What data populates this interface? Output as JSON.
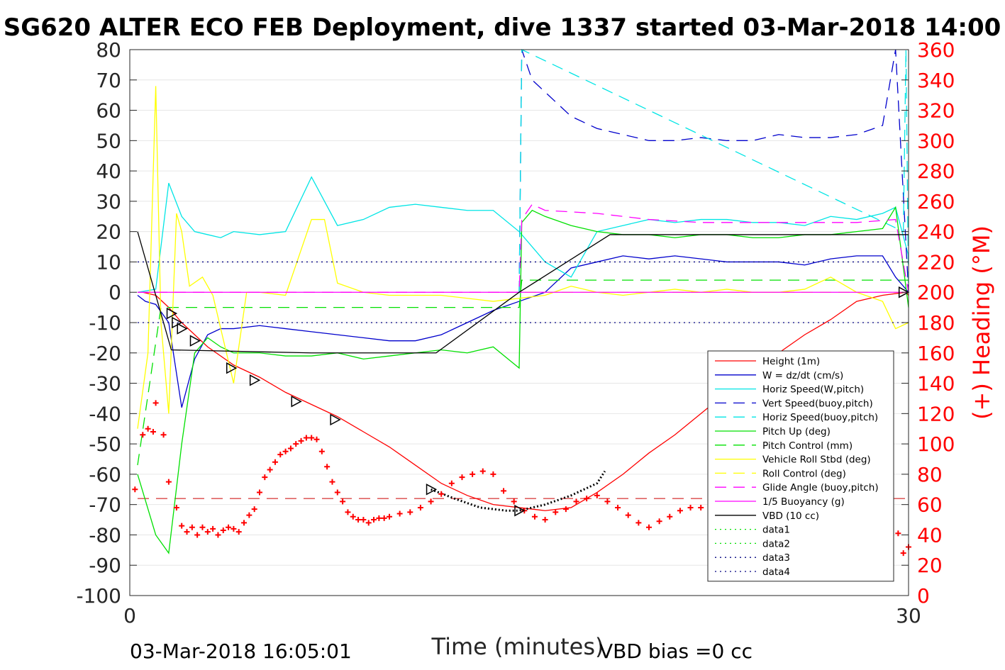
{
  "chart_data": {
    "type": "line",
    "title": "SG620 ALTER ECO FEB Deployment, dive 1337 started 03-Mar-2018 14:00",
    "xlabel": "Time (minutes)",
    "ylabel_right": "(+) Heading (°M)",
    "footer_left": "03-Mar-2018 16:05:01",
    "footer_right": "VBD bias =0 cc",
    "xlim": [
      0,
      30
    ],
    "ylim": [
      -100,
      80
    ],
    "y2lim": [
      0,
      360
    ],
    "x_ticks": [
      0,
      30
    ],
    "y_ticks": [
      -100,
      -90,
      -80,
      -70,
      -60,
      -50,
      -40,
      -30,
      -20,
      -10,
      0,
      10,
      20,
      30,
      40,
      50,
      60,
      70,
      80
    ],
    "y2_ticks": [
      0,
      20,
      40,
      60,
      80,
      100,
      120,
      140,
      160,
      180,
      200,
      220,
      240,
      260,
      280,
      300,
      320,
      340,
      360
    ],
    "grid": true,
    "legend_position": "lower-right",
    "series": [
      {
        "name": "Height (1m)",
        "color": "#ff0000",
        "style": "solid",
        "x": [
          0.5,
          1.0,
          1.5,
          2.0,
          3.0,
          4.0,
          5.0,
          6.0,
          7.0,
          8.0,
          9.0,
          10.0,
          11.0,
          12.0,
          13.0,
          14.0,
          15.0,
          16.0,
          17.0,
          18.0,
          19.0,
          20.0,
          21.0,
          22.0,
          23.0,
          24.0,
          25.0,
          26.0,
          27.0,
          28.0,
          29.0,
          29.9,
          30.0
        ],
        "y": [
          0,
          -1,
          -5,
          -10,
          -18,
          -24,
          -28,
          -33,
          -37,
          -41,
          -46,
          -51,
          -57,
          -63,
          -67,
          -70,
          -71,
          -72,
          -71,
          -66,
          -60,
          -53,
          -47,
          -40,
          -33,
          -27,
          -20,
          -14,
          -9,
          -3,
          -1,
          0,
          -1
        ]
      },
      {
        "name": "W = dz/dt (cm/s)",
        "color": "#0000cc",
        "style": "solid",
        "x": [
          0.3,
          0.6,
          1.0,
          1.5,
          2.0,
          2.5,
          3.0,
          3.5,
          4.0,
          5.0,
          6.0,
          7.0,
          8.0,
          9.0,
          10.0,
          11.0,
          12.0,
          13.0,
          14.0,
          15.0,
          16.0,
          17.0,
          18.0,
          19.0,
          20.0,
          21.0,
          22.0,
          23.0,
          24.0,
          25.0,
          26.0,
          27.0,
          28.0,
          29.0,
          29.5,
          30.0
        ],
        "y": [
          -1,
          -3,
          -4,
          -10,
          -38,
          -22,
          -14,
          -12,
          -12,
          -11,
          -12,
          -13,
          -14,
          -15,
          -16,
          -16,
          -14,
          -10,
          -6,
          -3,
          0,
          8,
          10,
          12,
          11,
          12,
          11,
          10,
          10,
          10,
          9,
          11,
          12,
          12,
          5,
          0
        ]
      },
      {
        "name": "Horiz Speed(W,pitch)",
        "color": "#00e5e5",
        "style": "solid",
        "x": [
          0.3,
          1.0,
          1.5,
          2.0,
          2.5,
          3.0,
          3.5,
          4.0,
          5.0,
          6.0,
          7.0,
          8.0,
          9.0,
          10.0,
          11.0,
          12.0,
          13.0,
          14.0,
          15.0,
          16.0,
          17.0,
          18.0,
          19.0,
          20.0,
          21.0,
          22.0,
          23.0,
          24.0,
          25.0,
          26.0,
          27.0,
          28.0,
          29.0,
          29.5,
          30.0
        ],
        "y": [
          0,
          1,
          36,
          25,
          20,
          19,
          18,
          20,
          19,
          20,
          38,
          22,
          24,
          28,
          29,
          28,
          27,
          27,
          20,
          10,
          5,
          20,
          22,
          24,
          23,
          24,
          24,
          23,
          23,
          22,
          25,
          24,
          26,
          28,
          12
        ]
      },
      {
        "name": "Vert Speed(buoy,pitch)",
        "color": "#0000cc",
        "style": "dashed",
        "x": [
          15.0,
          15.1,
          15.5,
          16.0,
          17.0,
          18.0,
          19.0,
          20.0,
          21.0,
          22.0,
          23.0,
          24.0,
          25.0,
          26.0,
          27.0,
          28.0,
          29.0,
          29.5,
          30.0
        ],
        "y": [
          0,
          80,
          70,
          66,
          58,
          54,
          52,
          50,
          50,
          51,
          50,
          50,
          52,
          51,
          51,
          52,
          55,
          80,
          0
        ]
      },
      {
        "name": "Horiz Speed(buoy,pitch)",
        "color": "#00e5e5",
        "style": "dashed",
        "x": [
          15.0,
          15.1,
          29.8,
          29.9,
          30.0
        ],
        "y": [
          0,
          80,
          20,
          80,
          0
        ]
      },
      {
        "name": "Pitch Up (deg)",
        "color": "#00e000",
        "style": "solid",
        "x": [
          0.3,
          1.0,
          1.5,
          2.0,
          2.5,
          3.0,
          3.5,
          4.0,
          5.0,
          6.0,
          7.0,
          8.0,
          9.0,
          10.0,
          11.0,
          12.0,
          13.0,
          14.0,
          15.0,
          15.1,
          15.5,
          16.0,
          17.0,
          18.0,
          19.0,
          20.0,
          21.0,
          22.0,
          23.0,
          24.0,
          25.0,
          26.0,
          27.0,
          28.0,
          29.0,
          29.5,
          30.0
        ],
        "y": [
          -60,
          -80,
          -86,
          -50,
          -20,
          -15,
          -18,
          -20,
          -20,
          -21,
          -21,
          -20,
          -22,
          -21,
          -20,
          -19,
          -20,
          -18,
          -25,
          23,
          27,
          25,
          22,
          20,
          19,
          19,
          18,
          19,
          19,
          18,
          18,
          19,
          19,
          20,
          21,
          28,
          -5
        ]
      },
      {
        "name": "Pitch Control (mm)",
        "color": "#00e000",
        "style": "dashed",
        "x": [
          0.3,
          1.2,
          1.5,
          15.0,
          15.1,
          30.0
        ],
        "y": [
          -57,
          -5,
          -5,
          -5,
          4,
          4
        ]
      },
      {
        "name": "Vehicle Roll Stbd (deg)",
        "color": "#ffff00",
        "style": "solid",
        "x": [
          0.3,
          0.7,
          1.0,
          1.2,
          1.5,
          1.8,
          2.0,
          2.3,
          2.8,
          3.2,
          4.0,
          4.5,
          5.0,
          6.0,
          7.0,
          7.5,
          8.0,
          9.0,
          10.0,
          12.0,
          13.0,
          14.0,
          15.0,
          16.0,
          17.0,
          18.0,
          19.0,
          20.0,
          21.0,
          22.0,
          23.0,
          24.0,
          25.0,
          26.0,
          27.0,
          28.0,
          29.0,
          29.5,
          30.0
        ],
        "y": [
          -45,
          -20,
          68,
          -10,
          -40,
          26,
          20,
          2,
          5,
          -1,
          -30,
          0,
          0,
          -1,
          24,
          24,
          3,
          0,
          -1,
          -1,
          -2,
          -3,
          -2,
          -1,
          2,
          0,
          -1,
          0,
          1,
          0,
          1,
          0,
          0,
          1,
          5,
          0,
          -3,
          -12,
          -10
        ]
      },
      {
        "name": "Roll Control (deg)",
        "color": "#ffff00",
        "style": "dashed",
        "x": [
          0.3,
          30.0
        ],
        "y": [
          0,
          0
        ]
      },
      {
        "name": "Glide Angle (buoy,pitch)",
        "color": "#ff00ff",
        "style": "dashed",
        "x": [
          0.3,
          15.0,
          15.1,
          15.5,
          16.0,
          18.0,
          20.0,
          22.0,
          24.0,
          26.0,
          28.0,
          29.5,
          30.0
        ],
        "y": [
          0,
          0,
          24,
          29,
          27,
          26,
          24,
          23,
          23,
          23,
          23,
          24,
          0
        ]
      },
      {
        "name": "1/5 Buoyancy (g)",
        "color": "#ff00ff",
        "style": "solid",
        "x": [
          0.3,
          30.0
        ],
        "y": [
          0,
          0
        ]
      },
      {
        "name": "VBD (10 cc)",
        "color": "#000000",
        "style": "solid",
        "x": [
          0.3,
          1.6,
          7.0,
          11.8,
          15.0,
          18.5,
          30.0
        ],
        "y": [
          20,
          -19,
          -20,
          -20,
          0,
          19,
          19
        ]
      },
      {
        "name": "data1",
        "color": "#00e000",
        "style": "dotted",
        "x": [],
        "y": []
      },
      {
        "name": "data2",
        "color": "#00e000",
        "style": "dotted",
        "x": [],
        "y": []
      },
      {
        "name": "data3",
        "color": "#000080",
        "style": "dotted",
        "x": [
          0.3,
          30.0
        ],
        "y": [
          10,
          10
        ]
      },
      {
        "name": "data4",
        "color": "#000080",
        "style": "dotted",
        "x": [
          0.3,
          30.0
        ],
        "y": [
          -10,
          -10
        ]
      }
    ],
    "heading_points": {
      "axis": "right",
      "color": "#ff0000",
      "marker": "+",
      "x": [
        0.2,
        0.5,
        0.7,
        0.9,
        1.0,
        1.3,
        1.5,
        1.8,
        2.0,
        2.2,
        2.4,
        2.6,
        2.8,
        3.0,
        3.2,
        3.4,
        3.6,
        3.8,
        4.0,
        4.2,
        4.4,
        4.6,
        4.8,
        5.0,
        5.2,
        5.4,
        5.6,
        5.8,
        6.0,
        6.2,
        6.4,
        6.6,
        6.8,
        7.0,
        7.2,
        7.4,
        7.6,
        7.8,
        8.0,
        8.2,
        8.4,
        8.6,
        8.8,
        9.0,
        9.2,
        9.4,
        9.6,
        9.8,
        10.0,
        10.4,
        10.8,
        11.2,
        11.6,
        12.0,
        12.4,
        12.8,
        13.2,
        13.6,
        14.0,
        14.4,
        14.8,
        15.2,
        15.6,
        16.0,
        16.4,
        16.8,
        17.2,
        17.6,
        18.0,
        18.4,
        18.8,
        19.2,
        19.6,
        20.0,
        20.4,
        20.8,
        21.2,
        21.6,
        22.0,
        22.4,
        22.8,
        23.2,
        23.6,
        24.0,
        24.4,
        24.8,
        25.2,
        25.6,
        26.0,
        26.4,
        26.8,
        27.2,
        27.6,
        28.0,
        28.4,
        28.8,
        29.2,
        29.6,
        29.8,
        30.0
      ],
      "y": [
        70,
        106,
        110,
        108,
        127,
        106,
        75,
        58,
        46,
        42,
        45,
        40,
        45,
        42,
        44,
        40,
        43,
        45,
        44,
        42,
        48,
        53,
        57,
        68,
        78,
        83,
        88,
        93,
        95,
        97,
        100,
        102,
        104,
        104,
        103,
        95,
        85,
        75,
        68,
        62,
        55,
        52,
        50,
        50,
        48,
        50,
        51,
        51,
        52,
        54,
        55,
        58,
        62,
        67,
        74,
        78,
        80,
        82,
        80,
        69,
        62,
        56,
        52,
        50,
        55,
        57,
        62,
        64,
        66,
        62,
        58,
        53,
        48,
        45,
        49,
        52,
        56,
        58,
        58,
        56,
        60,
        61,
        53,
        50,
        48,
        51,
        49,
        52,
        56,
        59,
        57,
        62,
        67,
        68,
        53,
        51,
        45,
        41,
        28,
        32
      ]
    },
    "triangle_markers": {
      "x": [
        1.6,
        1.8,
        2.0,
        2.5,
        3.9,
        4.8,
        6.4,
        7.9,
        11.6,
        15.0,
        29.8
      ],
      "y": [
        -7,
        -10,
        -12,
        -16,
        -25,
        -29,
        -36,
        -42,
        -65,
        -72,
        0
      ]
    },
    "dotted_trace": {
      "color": "#000000",
      "x": [
        11.6,
        12.5,
        13.5,
        14.5,
        15.0,
        16.0,
        17.0,
        18.0,
        18.3
      ],
      "y": [
        -65,
        -68,
        -71,
        -72,
        -72,
        -70,
        -67,
        -63,
        -59
      ]
    },
    "hline_red_dashed": {
      "y": -68,
      "xlim": [
        0.3,
        30.0
      ]
    }
  }
}
